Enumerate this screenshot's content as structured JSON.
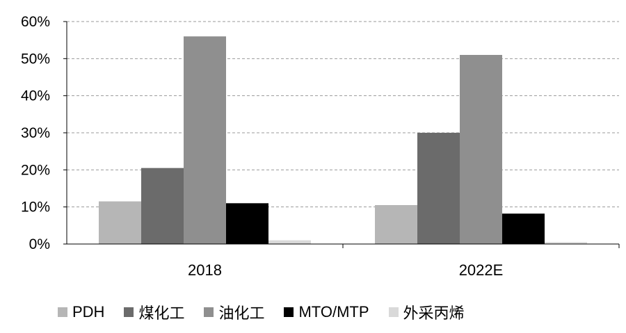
{
  "chart_data": {
    "type": "bar",
    "title": "",
    "xlabel": "",
    "ylabel": "",
    "categories": [
      "2018",
      "2022E"
    ],
    "ylim": [
      0,
      60
    ],
    "yticks": [
      "0%",
      "10%",
      "20%",
      "30%",
      "40%",
      "50%",
      "60%"
    ],
    "grid": "horizontal-dashed",
    "legend_position": "bottom",
    "series": [
      {
        "name": "PDH",
        "color": "#b6b6b6",
        "values": [
          11.5,
          10.5
        ]
      },
      {
        "name": "煤化工",
        "color": "#6b6b6b",
        "values": [
          20.5,
          30
        ]
      },
      {
        "name": "油化工",
        "color": "#8f8f8f",
        "values": [
          56,
          51
        ]
      },
      {
        "name": "MTO/MTP",
        "color": "#000000",
        "values": [
          11,
          8.2
        ]
      },
      {
        "name": "外采丙烯",
        "color": "#d9d9d9",
        "values": [
          1,
          0.5
        ]
      }
    ]
  }
}
